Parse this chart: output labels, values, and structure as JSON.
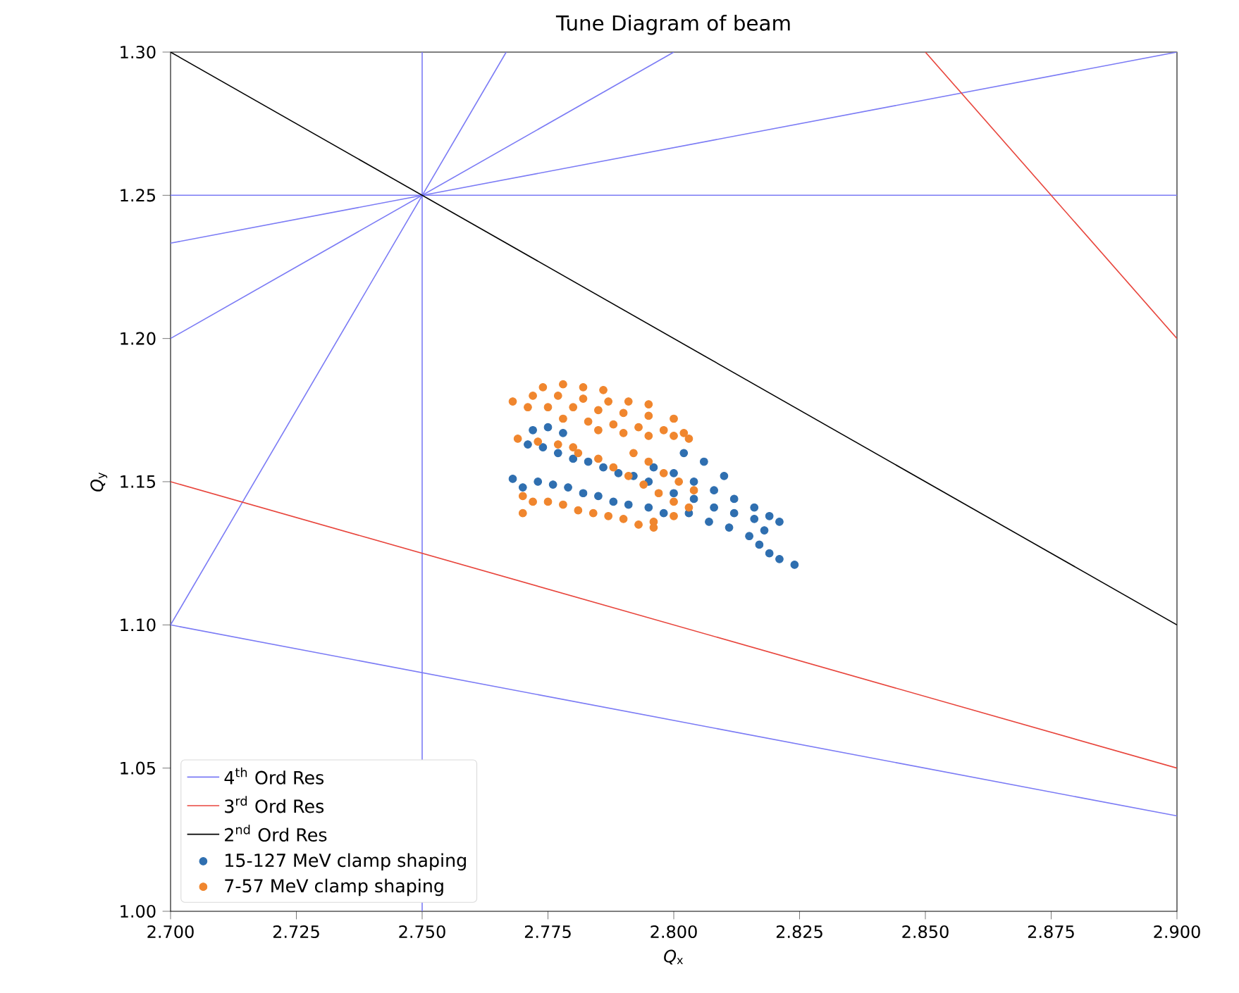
{
  "chart_data": {
    "type": "scatter",
    "title": "Tune Diagram of beam",
    "xlabel": "*Q*$_{x}$",
    "ylabel": "*Q*$_{y}$",
    "xlim": [
      2.7,
      2.9
    ],
    "ylim": [
      1.0,
      1.3
    ],
    "xticks": [
      {
        "value": 2.7,
        "label": "2.700"
      },
      {
        "value": 2.725,
        "label": "2.725"
      },
      {
        "value": 2.75,
        "label": "2.750"
      },
      {
        "value": 2.775,
        "label": "2.775"
      },
      {
        "value": 2.8,
        "label": "2.800"
      },
      {
        "value": 2.825,
        "label": "2.825"
      },
      {
        "value": 2.85,
        "label": "2.850"
      },
      {
        "value": 2.875,
        "label": "2.875"
      },
      {
        "value": 2.9,
        "label": "2.900"
      }
    ],
    "yticks": [
      {
        "value": 1.0,
        "label": "1.00"
      },
      {
        "value": 1.05,
        "label": "1.05"
      },
      {
        "value": 1.1,
        "label": "1.10"
      },
      {
        "value": 1.15,
        "label": "1.15"
      },
      {
        "value": 1.2,
        "label": "1.20"
      },
      {
        "value": 1.25,
        "label": "1.25"
      },
      {
        "value": 1.3,
        "label": "1.30"
      }
    ],
    "legend": "bottom left",
    "series": [
      {
        "type": "line",
        "name": "4$^{th}$ Ord Res",
        "color": "#7b7bf5",
        "x": [
          2.75,
          2.75
        ],
        "values": [
          1.0,
          1.3
        ]
      },
      {
        "type": "line",
        "color": "#7b7bf5",
        "x": [
          2.7,
          2.9
        ],
        "values": [
          1.25,
          1.25
        ]
      },
      {
        "type": "line",
        "color": "#7b7bf5",
        "x": [
          2.7,
          2.7667
        ],
        "values": [
          1.1,
          1.3
        ]
      },
      {
        "type": "line",
        "color": "#7b7bf5",
        "x": [
          2.7,
          2.8
        ],
        "values": [
          1.2,
          1.3
        ]
      },
      {
        "type": "line",
        "color": "#7b7bf5",
        "x": [
          2.7,
          2.9
        ],
        "values": [
          1.2333,
          1.3
        ]
      },
      {
        "type": "line",
        "color": "#7b7bf5",
        "x": [
          2.7,
          2.9
        ],
        "values": [
          1.1,
          1.0333
        ]
      },
      {
        "type": "line",
        "name": "3$^{rd}$ Ord Res",
        "color": "#e8453c",
        "x": [
          2.7,
          2.9
        ],
        "values": [
          1.15,
          1.05
        ]
      },
      {
        "type": "line",
        "color": "#e8453c",
        "x": [
          2.85,
          2.9
        ],
        "values": [
          1.3,
          1.2
        ]
      },
      {
        "type": "line",
        "name": "2$^{nd}$ Ord Res",
        "color": "#000000",
        "x": [
          2.7,
          2.9
        ],
        "values": [
          1.3,
          1.1
        ]
      },
      {
        "marker": "circle",
        "name": "15-127 MeV clamp shaping",
        "color": "#2f6fb0",
        "x": [
          2.772,
          2.775,
          2.778,
          2.771,
          2.774,
          2.777,
          2.78,
          2.783,
          2.786,
          2.789,
          2.792,
          2.795,
          2.796,
          2.8,
          2.804,
          2.808,
          2.812,
          2.816,
          2.819,
          2.821,
          2.8,
          2.804,
          2.808,
          2.812,
          2.816,
          2.818,
          2.803,
          2.807,
          2.811,
          2.815,
          2.817,
          2.819,
          2.821,
          2.824,
          2.81,
          2.806,
          2.802,
          2.768,
          2.77,
          2.773,
          2.776,
          2.779,
          2.782,
          2.785,
          2.788,
          2.791,
          2.795,
          2.798
        ],
        "values": [
          1.168,
          1.169,
          1.167,
          1.163,
          1.162,
          1.16,
          1.158,
          1.157,
          1.155,
          1.153,
          1.152,
          1.15,
          1.155,
          1.153,
          1.15,
          1.147,
          1.144,
          1.141,
          1.138,
          1.136,
          1.146,
          1.144,
          1.141,
          1.139,
          1.137,
          1.133,
          1.139,
          1.136,
          1.134,
          1.131,
          1.128,
          1.125,
          1.123,
          1.121,
          1.152,
          1.157,
          1.16,
          1.151,
          1.148,
          1.15,
          1.149,
          1.148,
          1.146,
          1.145,
          1.143,
          1.142,
          1.141,
          1.139
        ]
      },
      {
        "marker": "circle",
        "name": "7-57 MeV clamp shaping",
        "color": "#f0862e",
        "x": [
          2.774,
          2.778,
          2.782,
          2.786,
          2.772,
          2.777,
          2.782,
          2.787,
          2.791,
          2.795,
          2.775,
          2.78,
          2.785,
          2.79,
          2.795,
          2.8,
          2.778,
          2.783,
          2.788,
          2.793,
          2.798,
          2.802,
          2.785,
          2.79,
          2.795,
          2.8,
          2.803,
          2.768,
          2.771,
          2.769,
          2.773,
          2.777,
          2.78,
          2.781,
          2.785,
          2.788,
          2.791,
          2.794,
          2.797,
          2.8,
          2.803,
          2.8,
          2.796,
          2.792,
          2.795,
          2.798,
          2.801,
          2.804,
          2.77,
          2.772,
          2.775,
          2.778,
          2.781,
          2.784,
          2.787,
          2.79,
          2.793,
          2.796,
          2.77
        ],
        "values": [
          1.183,
          1.184,
          1.183,
          1.182,
          1.18,
          1.18,
          1.179,
          1.178,
          1.178,
          1.177,
          1.176,
          1.176,
          1.175,
          1.174,
          1.173,
          1.172,
          1.172,
          1.171,
          1.17,
          1.169,
          1.168,
          1.167,
          1.168,
          1.167,
          1.166,
          1.166,
          1.165,
          1.178,
          1.176,
          1.165,
          1.164,
          1.163,
          1.162,
          1.16,
          1.158,
          1.155,
          1.152,
          1.149,
          1.146,
          1.143,
          1.141,
          1.138,
          1.136,
          1.16,
          1.157,
          1.153,
          1.15,
          1.147,
          1.145,
          1.143,
          1.143,
          1.142,
          1.14,
          1.139,
          1.138,
          1.137,
          1.135,
          1.134,
          1.139
        ]
      }
    ]
  }
}
